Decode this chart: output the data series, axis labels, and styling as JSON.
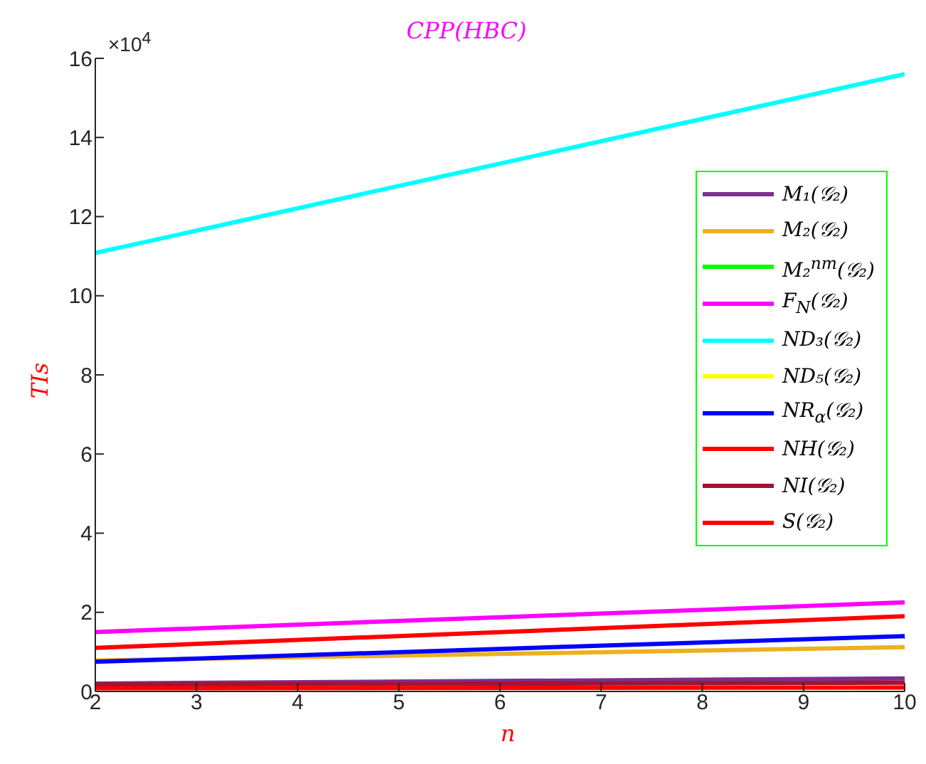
{
  "chart_data": {
    "type": "line",
    "title": "CPP(HBC)",
    "xlabel": "n",
    "ylabel": "TIs",
    "annotations": [
      "×10$^{4}$"
    ],
    "x": [
      2,
      10
    ],
    "series": [
      {
        "name": "M₁(𝒢₂)",
        "color": "#7e2f8e",
        "values": [
          0.2,
          0.33
        ]
      },
      {
        "name": "M₂(𝒢₂)",
        "color": "#edb120",
        "values": [
          0.78,
          1.12
        ]
      },
      {
        "name": "M₂$^{nm}$(𝒢₂)",
        "color": "#00ff00",
        "values": [
          null,
          null
        ]
      },
      {
        "name": "F$_{N}$(𝒢₂)",
        "color": "#ff00ff",
        "values": [
          1.5,
          2.25
        ]
      },
      {
        "name": "ND₃(𝒢₂)",
        "color": "#00ffff",
        "values": [
          11.08,
          15.6
        ]
      },
      {
        "name": "ND₅(𝒢₂)",
        "color": "#ffff00",
        "values": [
          null,
          null
        ]
      },
      {
        "name": "NR$_{α}$(𝒢₂)",
        "color": "#0000ff",
        "values": [
          0.75,
          1.4
        ]
      },
      {
        "name": "NH(𝒢₂)",
        "color": "#ff0000",
        "values": [
          1.1,
          1.9
        ]
      },
      {
        "name": "NI(𝒢₂)",
        "color": "#a2142f",
        "values": [
          0.17,
          0.22
        ]
      },
      {
        "name": "S(𝒢₂)",
        "color": "#ff0000",
        "values": [
          0.08,
          0.1
        ]
      }
    ],
    "xlim": [
      2,
      10
    ],
    "xticks": [
      2,
      3,
      4,
      5,
      6,
      7,
      8,
      9,
      10
    ],
    "ylim": [
      0,
      16
    ],
    "yticks": [
      0,
      2,
      4,
      6,
      8,
      10,
      12,
      14,
      16
    ],
    "grid": false,
    "legend": "top right",
    "marker": "none",
    "line_style": "solid"
  }
}
